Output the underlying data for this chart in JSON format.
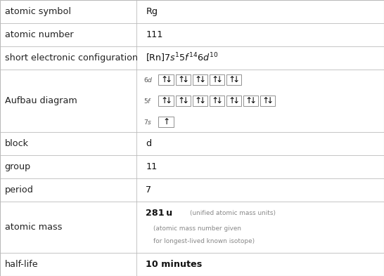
{
  "rows": [
    {
      "label": "atomic symbol",
      "value": "Rg",
      "value_style": "plain"
    },
    {
      "label": "atomic number",
      "value": "111",
      "value_style": "plain"
    },
    {
      "label": "short electronic configuration",
      "value": "",
      "value_style": "elec_config"
    },
    {
      "label": "Aufbau diagram",
      "value": "",
      "value_style": "aufbau"
    },
    {
      "label": "block",
      "value": "d",
      "value_style": "plain"
    },
    {
      "label": "group",
      "value": "11",
      "value_style": "plain"
    },
    {
      "label": "period",
      "value": "7",
      "value_style": "plain"
    },
    {
      "label": "atomic mass",
      "value": "",
      "value_style": "atomic_mass"
    },
    {
      "label": "half-life",
      "value": "10 minutes",
      "value_style": "bold"
    }
  ],
  "col_split": 0.355,
  "bg_color": "#ffffff",
  "border_color": "#bbbbbb",
  "label_color": "#222222",
  "value_color": "#111111",
  "gray_color": "#888888",
  "font_size": 9.2,
  "row_heights": [
    1.0,
    1.0,
    1.0,
    2.7,
    1.0,
    1.0,
    1.0,
    2.2,
    1.0
  ],
  "aufbau_rows": [
    {
      "label": "6d",
      "n_orbitals": 5,
      "n_electrons": 10
    },
    {
      "label": "5f",
      "n_orbitals": 7,
      "n_electrons": 14
    },
    {
      "label": "7s",
      "n_orbitals": 1,
      "n_electrons": 1
    }
  ]
}
